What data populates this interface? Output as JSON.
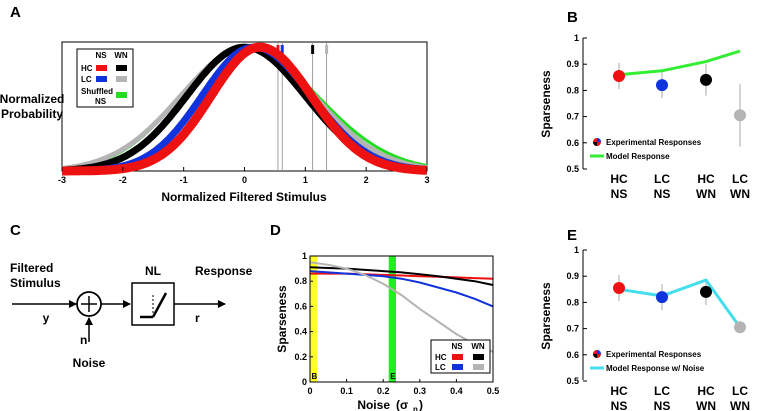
{
  "colors": {
    "HC_NS": "#ee1111",
    "LC_NS": "#1133dd",
    "HC_WN": "#000000",
    "LC_WN": "#b4b4b4",
    "shuffled": "#22dd22",
    "model": "#33ee33",
    "model_noise": "#44ddee",
    "bandB": "#ffff22",
    "bandE": "#22ee22"
  },
  "chart_data": [
    {
      "panel": "A",
      "type": "line",
      "xlabel": "Normalized Filtered Stimulus",
      "ylabel": [
        "Normalized",
        "Probability"
      ],
      "xlim": [
        -3,
        3
      ],
      "ylim": [
        0,
        1
      ],
      "xticks": [
        "-3",
        "-2",
        "-1",
        "0",
        "1",
        "2",
        "3"
      ],
      "legend": {
        "col1": "NS",
        "col2": "WN",
        "row1": "HC",
        "row2": "LC",
        "row3a": "Shuffled",
        "row3b": "NS",
        "placement": "top-left"
      },
      "series": [
        {
          "key": "shuffled",
          "mu": 0.0,
          "sl": 1.05,
          "sr": 1.2,
          "color": "#22dd22",
          "width": 3
        },
        {
          "key": "LC_WN",
          "mu": 0.05,
          "sl": 1.1,
          "sr": 1.1,
          "color": "#b4b4b4",
          "width": 5
        },
        {
          "key": "HC_WN",
          "mu": 0.0,
          "sl": 0.95,
          "sr": 1.0,
          "color": "#000000",
          "width": 7
        },
        {
          "key": "LC_NS",
          "mu": 0.15,
          "sl": 0.85,
          "sr": 0.95,
          "color": "#1133dd",
          "width": 7
        },
        {
          "key": "HC_NS",
          "mu": 0.25,
          "sl": 0.8,
          "sr": 0.85,
          "color": "#ee1111",
          "width": 9
        }
      ],
      "thresholds": [
        {
          "x": 0.55,
          "marker_color": "#ee1111"
        },
        {
          "x": 0.62,
          "marker_color": "#1133dd"
        },
        {
          "x": 1.12,
          "marker_color": "#000000"
        },
        {
          "x": 1.35,
          "marker_color": "#b4b4b4"
        }
      ]
    },
    {
      "panel": "B",
      "type": "scatter",
      "ylabel": "Sparseness",
      "ylim": [
        0.5,
        1
      ],
      "yticks": [
        "0.5",
        "0.6",
        "0.7",
        "0.8",
        "0.9",
        "1"
      ],
      "categories": [
        [
          "HC",
          "NS"
        ],
        [
          "LC",
          "NS"
        ],
        [
          "HC",
          "WN"
        ],
        [
          "LC",
          "WN"
        ]
      ],
      "experimental": [
        0.855,
        0.82,
        0.84,
        0.705
      ],
      "error": [
        0.05,
        0.05,
        0.06,
        0.12
      ],
      "point_colors": [
        "#ee1111",
        "#1133dd",
        "#000000",
        "#b4b4b4"
      ],
      "model": [
        0.86,
        0.875,
        0.91,
        0.95
      ],
      "legend": {
        "exp": "Experimental Responses",
        "model": "Model Response"
      }
    },
    {
      "panel": "D",
      "type": "line",
      "xlabel_main": "Noise",
      "xlabel_sym": "(σ",
      "xlabel_sub": "n",
      "xlabel_close": ")",
      "ylabel": "Sparseness",
      "xlim": [
        0,
        0.5
      ],
      "ylim": [
        0,
        1
      ],
      "xticks": [
        "0",
        "0.1",
        "0.2",
        "0.3",
        "0.4",
        "0.5"
      ],
      "yticks": [
        "0",
        "0.2",
        "0.4",
        "0.6",
        "0.8",
        "1"
      ],
      "bands": [
        {
          "label": "B",
          "x0": 0.0,
          "x1": 0.02,
          "color": "#ffff22"
        },
        {
          "label": "E",
          "x0": 0.215,
          "x1": 0.235,
          "color": "#22ee22"
        }
      ],
      "legend": {
        "col1": "NS",
        "col2": "WN",
        "row1": "HC",
        "row2": "LC"
      },
      "x": [
        0,
        0.05,
        0.1,
        0.15,
        0.2,
        0.25,
        0.3,
        0.35,
        0.4,
        0.45,
        0.5
      ],
      "series": [
        {
          "key": "HC_NS",
          "values": [
            0.86,
            0.86,
            0.86,
            0.855,
            0.85,
            0.845,
            0.84,
            0.835,
            0.83,
            0.825,
            0.82
          ],
          "color": "#ee1111"
        },
        {
          "key": "LC_NS",
          "values": [
            0.88,
            0.87,
            0.86,
            0.85,
            0.84,
            0.82,
            0.79,
            0.75,
            0.71,
            0.66,
            0.6
          ],
          "color": "#1133dd"
        },
        {
          "key": "HC_WN",
          "values": [
            0.91,
            0.905,
            0.9,
            0.89,
            0.88,
            0.87,
            0.855,
            0.84,
            0.82,
            0.8,
            0.77
          ],
          "color": "#000000"
        },
        {
          "key": "LC_WN",
          "values": [
            0.95,
            0.93,
            0.9,
            0.85,
            0.78,
            0.69,
            0.58,
            0.48,
            0.38,
            0.3,
            0.24
          ],
          "color": "#b4b4b4"
        }
      ]
    },
    {
      "panel": "E",
      "type": "scatter",
      "ylabel": "Sparseness",
      "ylim": [
        0.5,
        1
      ],
      "yticks": [
        "0.5",
        "0.6",
        "0.7",
        "0.8",
        "0.9",
        "1"
      ],
      "categories": [
        [
          "HC",
          "NS"
        ],
        [
          "LC",
          "NS"
        ],
        [
          "HC",
          "WN"
        ],
        [
          "LC",
          "WN"
        ]
      ],
      "experimental": [
        0.855,
        0.82,
        0.84,
        0.705
      ],
      "error": [
        0.05,
        0.05,
        0.05,
        0.01
      ],
      "point_colors": [
        "#ee1111",
        "#1133dd",
        "#000000",
        "#b4b4b4"
      ],
      "model": [
        0.85,
        0.825,
        0.885,
        0.705
      ],
      "legend": {
        "exp": "Experimental Responses",
        "model": "Model Response w/ Noise"
      }
    }
  ],
  "diagram_C": {
    "panel": "C",
    "input_label_1": "Filtered",
    "input_label_2": "Stimulus",
    "y_label": "y",
    "n_label": "n",
    "noise_label": "Noise",
    "nl_label": "NL",
    "response_label": "Response",
    "r_label": "r"
  },
  "panel_labels": {
    "A": "A",
    "B": "B",
    "C": "C",
    "D": "D",
    "E": "E"
  }
}
